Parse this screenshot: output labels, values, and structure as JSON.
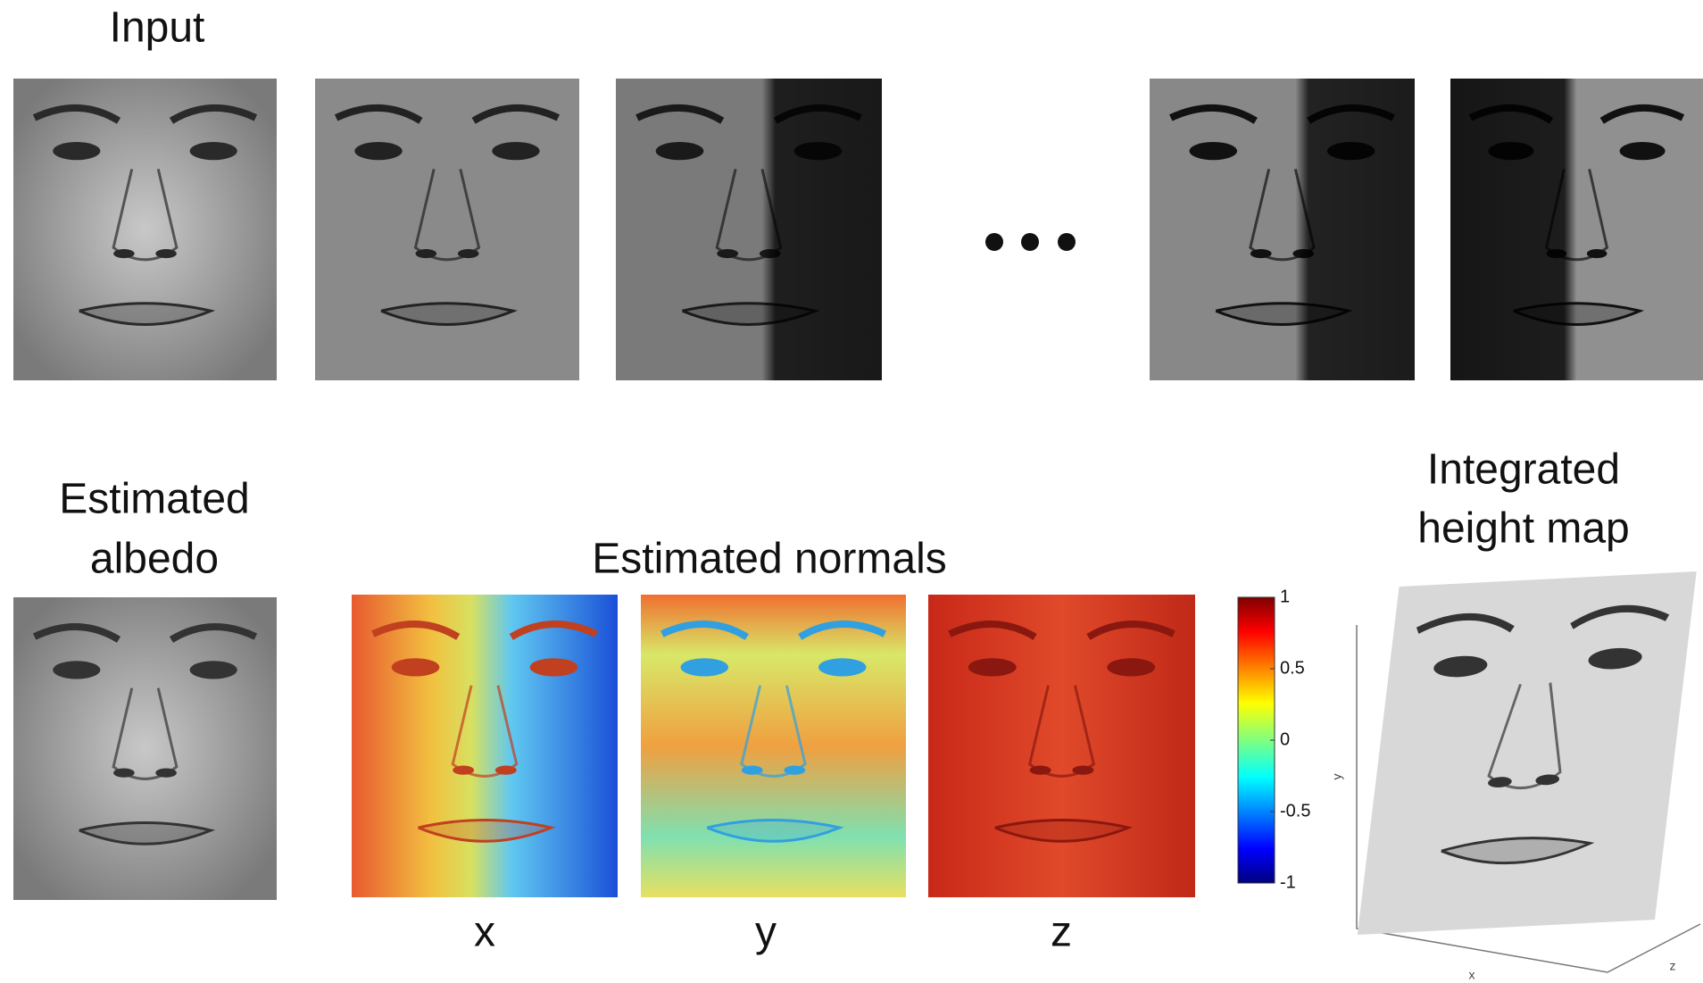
{
  "input": {
    "title": "Input"
  },
  "albedo": {
    "title": [
      "Estimated",
      "albedo"
    ]
  },
  "normals": {
    "title": "Estimated normals",
    "components": [
      "x",
      "y",
      "z"
    ]
  },
  "colorbar": {
    "lim": [
      -1,
      1
    ],
    "ticks": [
      1,
      0.5,
      0,
      -0.5,
      -1
    ]
  },
  "height_map": {
    "title": [
      "Integrated",
      "height map"
    ],
    "axes": [
      "y",
      "x",
      "z"
    ]
  }
}
